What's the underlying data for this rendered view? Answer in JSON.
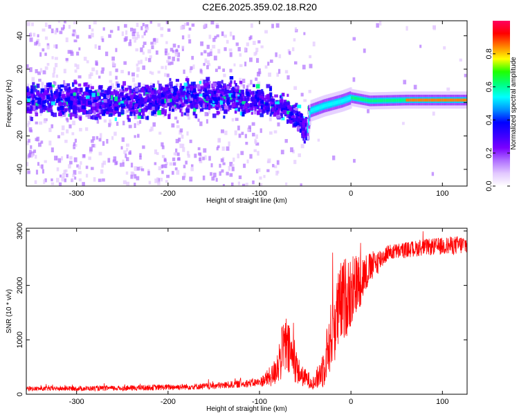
{
  "page_title": "C2E6.2025.359.02.18.R20",
  "chart_data": [
    {
      "type": "heatmap",
      "name": "spectrogram",
      "title": "C2E6.2025.359.02.18.R20",
      "xlabel": "Height of straight line (km)",
      "ylabel": "Frequency (Hz)",
      "xlim": [
        -355,
        127
      ],
      "ylim": [
        -50,
        49
      ],
      "xticks": [
        -300,
        -200,
        -100,
        0,
        100
      ],
      "yticks": [
        -40,
        -20,
        0,
        20,
        40
      ],
      "colorbar": {
        "label": "Normalized spectral amplitude",
        "range": [
          0.0,
          1.0
        ],
        "ticks": [
          "0.0",
          "0.2",
          "0.4",
          "0.6",
          "0.8"
        ],
        "tick_values": [
          0.0,
          0.2,
          0.4,
          0.6,
          0.8
        ],
        "colors": [
          "#ffffff",
          "#e2c8ff",
          "#b070ff",
          "#7a00ff",
          "#3a00ff",
          "#0000ff",
          "#0090ff",
          "#00ffff",
          "#00ff80",
          "#20ff00",
          "#ffff00",
          "#ff8000",
          "#ff0000",
          "#ff0060"
        ]
      },
      "ridge": [
        {
          "x": -355,
          "f": 2
        },
        {
          "x": -300,
          "f": 1
        },
        {
          "x": -250,
          "f": 0
        },
        {
          "x": -200,
          "f": 3
        },
        {
          "x": -150,
          "f": 4
        },
        {
          "x": -110,
          "f": 2
        },
        {
          "x": -90,
          "f": 0
        },
        {
          "x": -70,
          "f": -4
        },
        {
          "x": -55,
          "f": -12
        },
        {
          "x": -48,
          "f": -16
        },
        {
          "x": -45,
          "f": -5
        },
        {
          "x": -30,
          "f": -2
        },
        {
          "x": -10,
          "f": 1
        },
        {
          "x": 0,
          "f": 3
        },
        {
          "x": 20,
          "f": 1
        },
        {
          "x": 60,
          "f": 1.5
        },
        {
          "x": 127,
          "f": 1.5
        }
      ]
    },
    {
      "type": "line",
      "name": "snr",
      "xlabel": "Height of straight line (km)",
      "ylabel": "SNR (10 * v/v)",
      "xlim": [
        -355,
        127
      ],
      "ylim": [
        0,
        3050
      ],
      "xticks": [
        -300,
        -200,
        -100,
        0,
        100
      ],
      "yticks": [
        0,
        1000,
        2000,
        3000
      ],
      "color": "#ff0000",
      "envelope": [
        {
          "x": -355,
          "mean": 100,
          "noise": 40
        },
        {
          "x": -250,
          "mean": 110,
          "noise": 50
        },
        {
          "x": -150,
          "mean": 150,
          "noise": 60
        },
        {
          "x": -100,
          "mean": 220,
          "noise": 80
        },
        {
          "x": -85,
          "mean": 350,
          "noise": 220
        },
        {
          "x": -72,
          "mean": 900,
          "noise": 600
        },
        {
          "x": -65,
          "mean": 700,
          "noise": 450
        },
        {
          "x": -55,
          "mean": 350,
          "noise": 200
        },
        {
          "x": -40,
          "mean": 200,
          "noise": 120
        },
        {
          "x": -30,
          "mean": 500,
          "noise": 400
        },
        {
          "x": -20,
          "mean": 1200,
          "noise": 700
        },
        {
          "x": -10,
          "mean": 1700,
          "noise": 800
        },
        {
          "x": 0,
          "mean": 1900,
          "noise": 700
        },
        {
          "x": 20,
          "mean": 2300,
          "noise": 300
        },
        {
          "x": 40,
          "mean": 2600,
          "noise": 150
        },
        {
          "x": 80,
          "mean": 2700,
          "noise": 150
        },
        {
          "x": 127,
          "mean": 2750,
          "noise": 180
        }
      ]
    }
  ]
}
